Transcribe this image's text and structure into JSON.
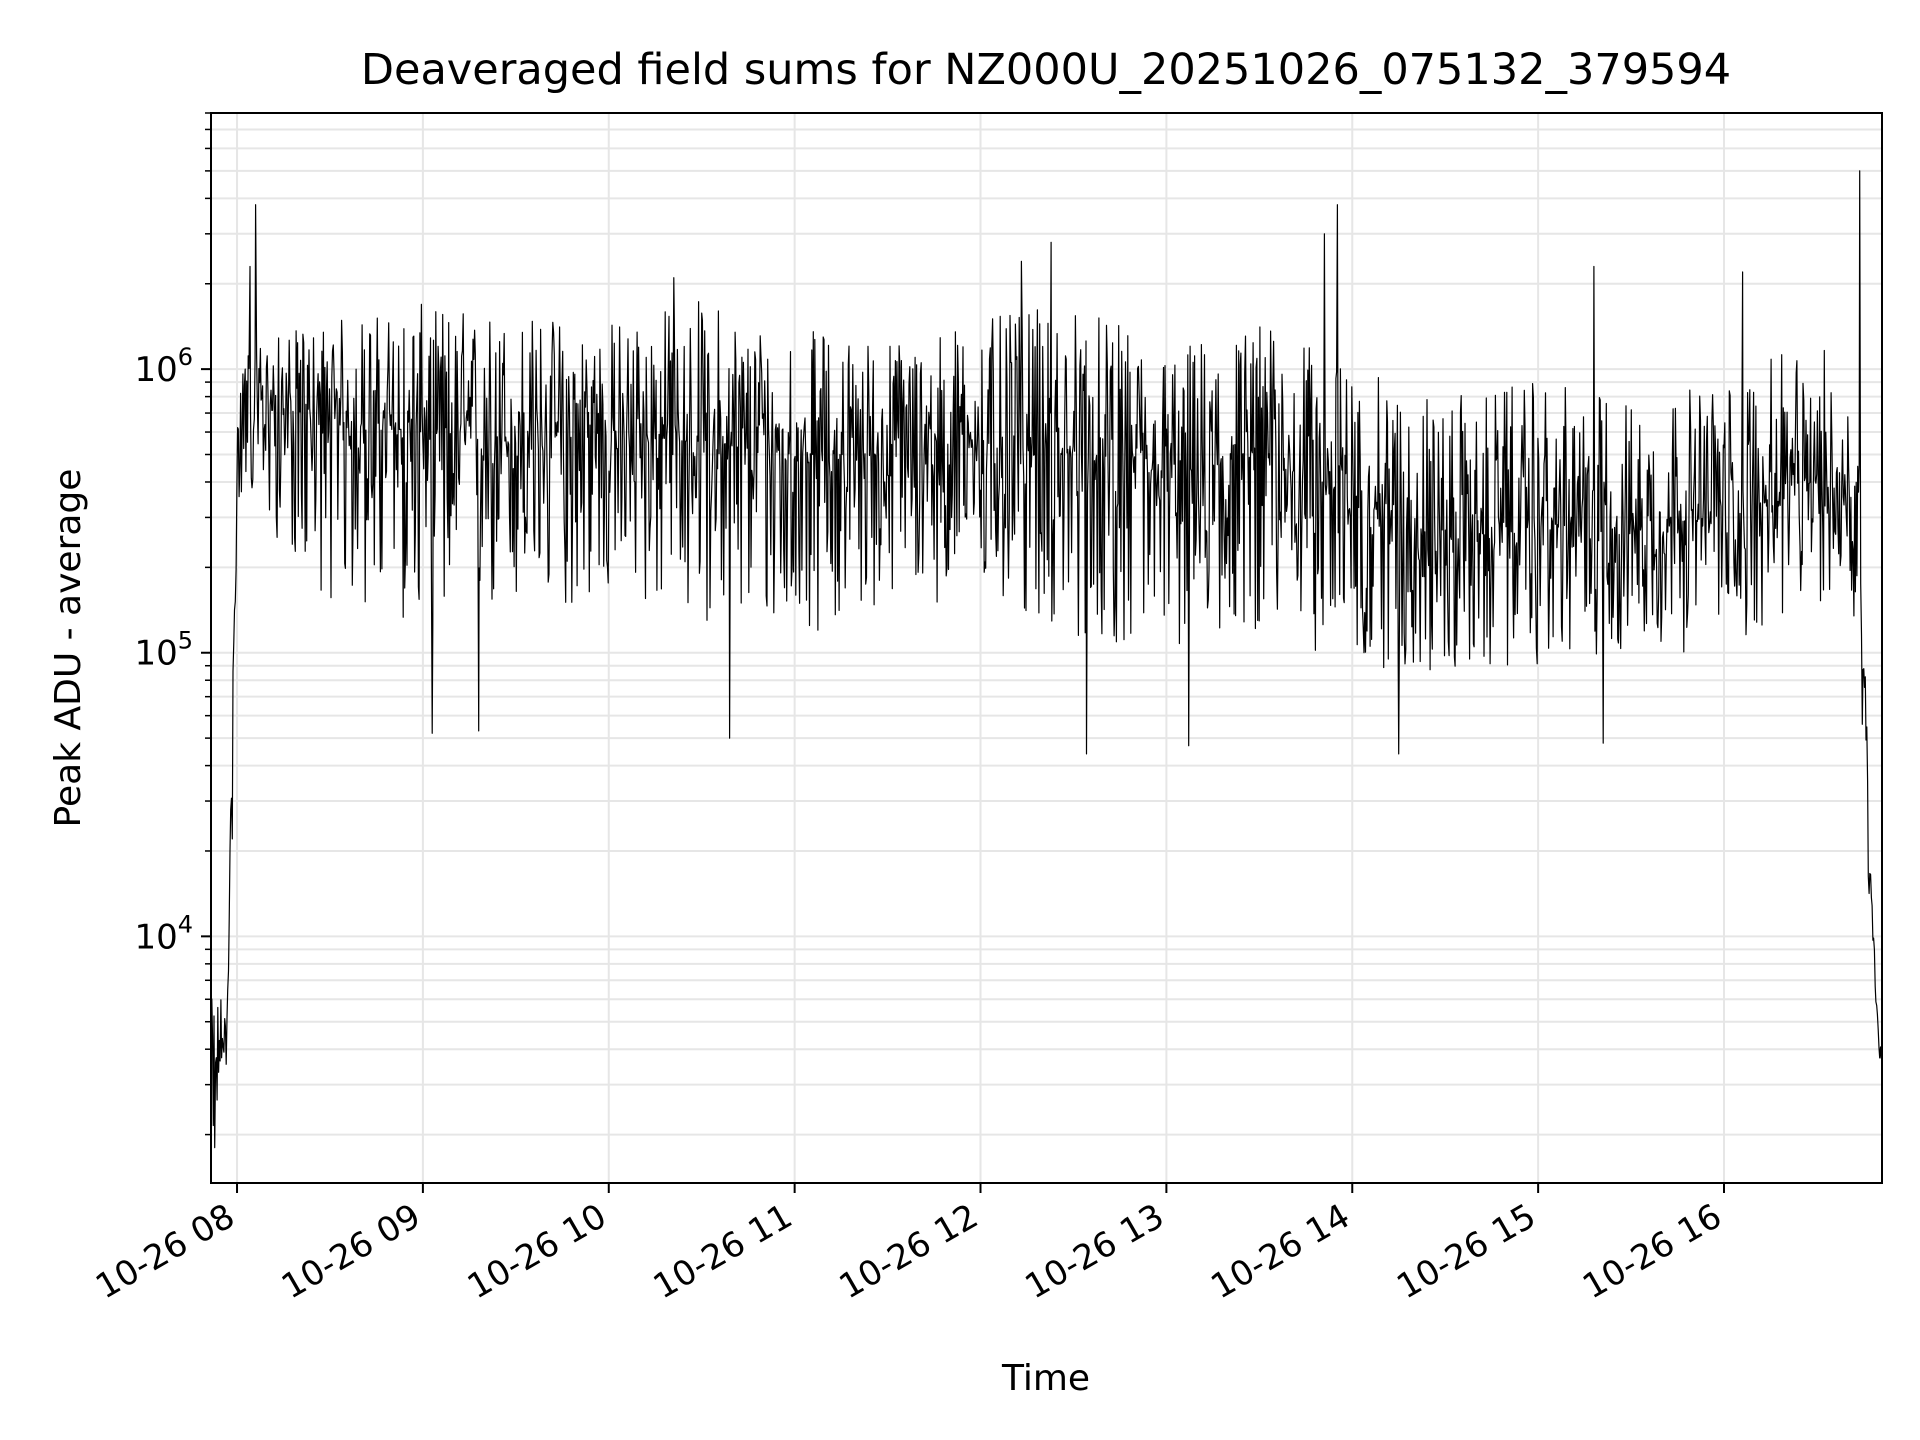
{
  "chart_data": {
    "type": "line",
    "title": "Deaveraged field sums for NZ000U_20251026_075132_379594",
    "xlabel": "Time",
    "ylabel": "Peak ADU - average",
    "yscale": "log",
    "ylim": [
      1350,
      8000000
    ],
    "x_unit": "hours since 2025-10-26 08:00",
    "xlim": [
      -0.14,
      8.85
    ],
    "grid": true,
    "line_color": "#000000",
    "grid_color": "#e6e6e6",
    "x_ticks": [
      {
        "value": 0,
        "label": "10-26 08"
      },
      {
        "value": 1,
        "label": "10-26 09"
      },
      {
        "value": 2,
        "label": "10-26 10"
      },
      {
        "value": 3,
        "label": "10-26 11"
      },
      {
        "value": 4,
        "label": "10-26 12"
      },
      {
        "value": 5,
        "label": "10-26 13"
      },
      {
        "value": 6,
        "label": "10-26 14"
      },
      {
        "value": 7,
        "label": "10-26 15"
      },
      {
        "value": 8,
        "label": "10-26 16"
      }
    ],
    "y_ticks": [
      {
        "value": 10000,
        "base": "10",
        "exp": "4"
      },
      {
        "value": 100000,
        "base": "10",
        "exp": "5"
      },
      {
        "value": 1000000,
        "base": "10",
        "exp": "6"
      }
    ],
    "series": [
      {
        "name": "Peak ADU - average",
        "envelope": [
          {
            "x": -0.14,
            "median": 3000,
            "low": 1800,
            "high": 6000
          },
          {
            "x": -0.05,
            "median": 5000,
            "low": 3500,
            "high": 7000
          },
          {
            "x": -0.02,
            "median": 100000,
            "low": 30000,
            "high": 400000
          },
          {
            "x": 0.02,
            "median": 800000,
            "low": 350000,
            "high": 1200000
          },
          {
            "x": 0.5,
            "median": 650000,
            "low": 150000,
            "high": 1500000
          },
          {
            "x": 1.0,
            "median": 600000,
            "low": 120000,
            "high": 1700000
          },
          {
            "x": 1.5,
            "median": 550000,
            "low": 130000,
            "high": 1600000
          },
          {
            "x": 2.0,
            "median": 600000,
            "low": 150000,
            "high": 1500000
          },
          {
            "x": 2.5,
            "median": 550000,
            "low": 130000,
            "high": 1800000
          },
          {
            "x": 3.0,
            "median": 500000,
            "low": 110000,
            "high": 1400000
          },
          {
            "x": 3.5,
            "median": 500000,
            "low": 150000,
            "high": 1300000
          },
          {
            "x": 4.0,
            "median": 550000,
            "low": 150000,
            "high": 1500000
          },
          {
            "x": 4.5,
            "median": 500000,
            "low": 110000,
            "high": 1700000
          },
          {
            "x": 5.0,
            "median": 400000,
            "low": 100000,
            "high": 1200000
          },
          {
            "x": 5.5,
            "median": 500000,
            "low": 120000,
            "high": 1500000
          },
          {
            "x": 6.0,
            "median": 350000,
            "low": 90000,
            "high": 1000000
          },
          {
            "x": 6.5,
            "median": 250000,
            "low": 80000,
            "high": 800000
          },
          {
            "x": 7.0,
            "median": 280000,
            "low": 90000,
            "high": 900000
          },
          {
            "x": 7.5,
            "median": 280000,
            "low": 100000,
            "high": 800000
          },
          {
            "x": 8.0,
            "median": 300000,
            "low": 100000,
            "high": 900000
          },
          {
            "x": 8.5,
            "median": 400000,
            "low": 150000,
            "high": 1300000
          },
          {
            "x": 8.72,
            "median": 350000,
            "low": 120000,
            "high": 800000
          },
          {
            "x": 8.8,
            "median": 10000,
            "low": 6000,
            "high": 12000
          },
          {
            "x": 8.85,
            "median": 3500,
            "low": 3000,
            "high": 5000
          }
        ],
        "peaks": [
          {
            "x": 0.1,
            "y": 3800000
          },
          {
            "x": 0.07,
            "y": 2300000
          },
          {
            "x": 2.35,
            "y": 2100000
          },
          {
            "x": 4.38,
            "y": 2800000
          },
          {
            "x": 4.22,
            "y": 2400000
          },
          {
            "x": 5.92,
            "y": 3800000
          },
          {
            "x": 5.85,
            "y": 3000000
          },
          {
            "x": 7.3,
            "y": 2300000
          },
          {
            "x": 8.1,
            "y": 2200000
          },
          {
            "x": 8.73,
            "y": 5000000
          }
        ],
        "dips": [
          {
            "x": 1.05,
            "y": 52000
          },
          {
            "x": 1.3,
            "y": 53000
          },
          {
            "x": 2.65,
            "y": 50000
          },
          {
            "x": 4.57,
            "y": 44000
          },
          {
            "x": 5.12,
            "y": 47000
          },
          {
            "x": 6.25,
            "y": 44000
          },
          {
            "x": 7.35,
            "y": 48000
          },
          {
            "x": -0.12,
            "y": 1800
          }
        ]
      }
    ]
  }
}
